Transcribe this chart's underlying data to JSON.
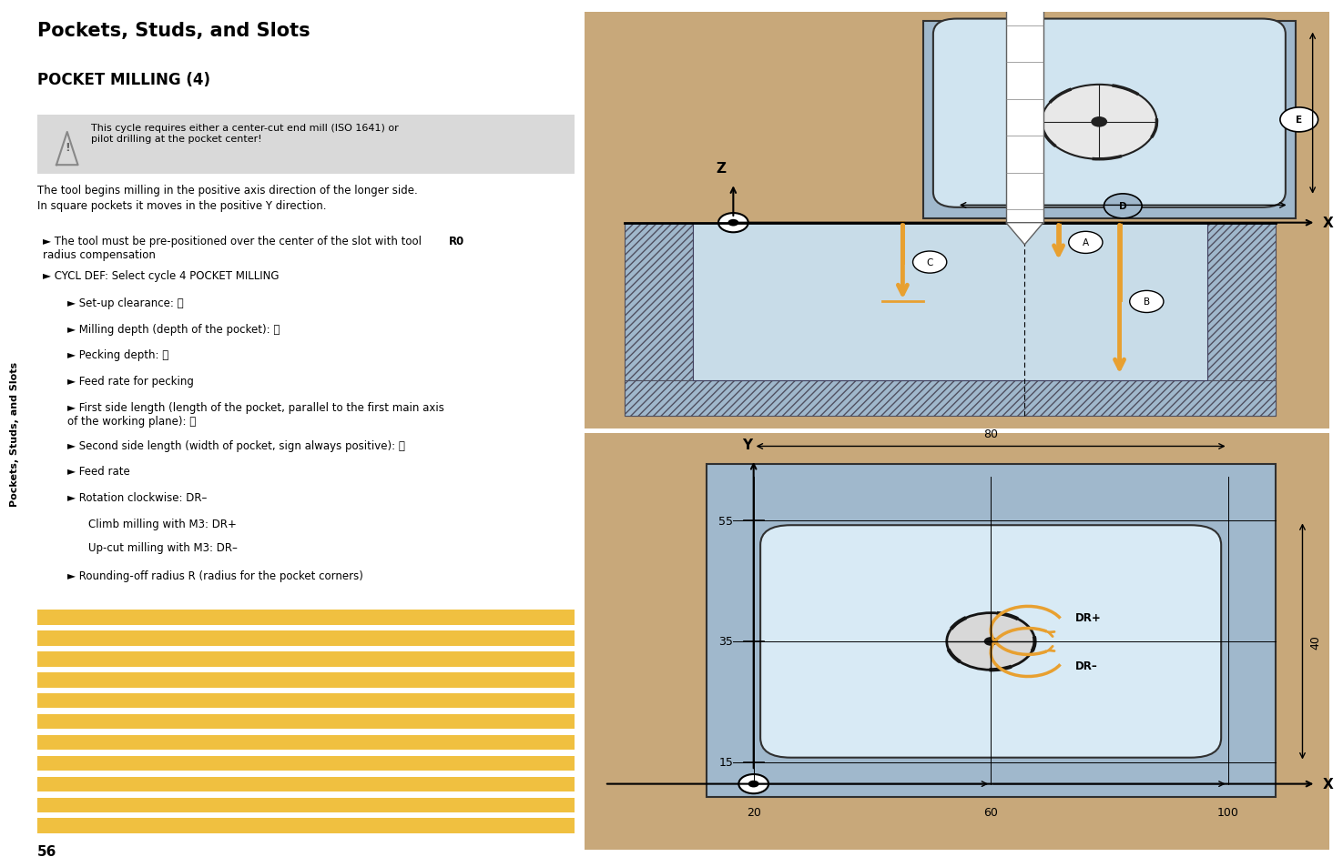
{
  "title": "Pockets, Studs, and Slots",
  "subtitle": "POCKET MILLING (4)",
  "sidebar_text": "Pockets, Studs, and Slots",
  "page_number": "56",
  "warning_text": "This cycle requires either a center-cut end mill (ISO 1641) or\npilot drilling at the pocket center!",
  "body_text_1": "The tool begins milling in the positive axis direction of the longer side.\nIn square pockets it moves in the positive Y direction.",
  "bullet_L1": [
    "The tool must be pre-positioned over the center of the slot with tool\nradius compensation ",
    "CYCL DEF: Select cycle 4 POCKET MILLING"
  ],
  "bullet_L2": [
    "Set-up clearance: Ⓐ",
    "Milling depth (depth of the pocket): Ⓑ",
    "Pecking depth: Ⓒ",
    "Feed rate for pecking",
    "First side length (length of the pocket, parallel to the first main axis\nof the working plane): Ⓓ",
    "Second side length (width of pocket, sign always positive): Ⓔ",
    "Feed rate",
    "Rotation clockwise: DR–",
    "Climb milling with M3: DR+",
    "Up-cut milling with M3: DR–",
    "Rounding-off radius R (radius for the pocket corners)"
  ],
  "bg_color": "#ffffff",
  "sidebar_bg": "#8dc63f",
  "warning_bg": "#d9d9d9",
  "diagram_bg": "#c8a87a",
  "pocket_fill": "#a0b8cc",
  "pocket_inner_fill": "#c8dce8",
  "hatch_color": "#8090b0",
  "arrow_color": "#e8a030",
  "stripe_color": "#f0c040"
}
